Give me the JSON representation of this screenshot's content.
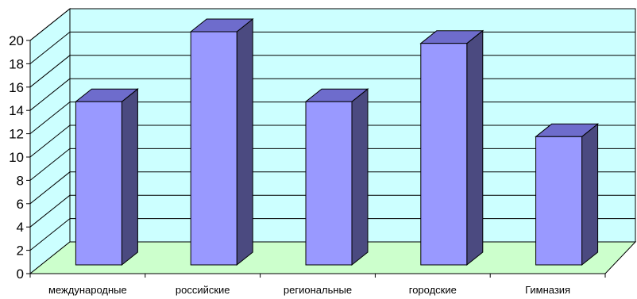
{
  "chart_data": {
    "type": "bar",
    "title": "",
    "xlabel": "",
    "ylabel": "",
    "categories": [
      "международные",
      "российские",
      "региональные",
      "городские",
      "Гимназия"
    ],
    "values": [
      14,
      20,
      14,
      19,
      11
    ],
    "ylim": [
      0,
      20
    ],
    "yticks": [
      0,
      2,
      4,
      6,
      8,
      10,
      12,
      14,
      16,
      18,
      20
    ],
    "grid": true,
    "legend": "none",
    "colors": {
      "bar_front": "#9999ff",
      "bar_side": "#4b4a80",
      "bar_top": "#6e6ccc",
      "back_wall": "#ccffff",
      "floor": "#ccffcc",
      "outline": "#000000"
    }
  }
}
